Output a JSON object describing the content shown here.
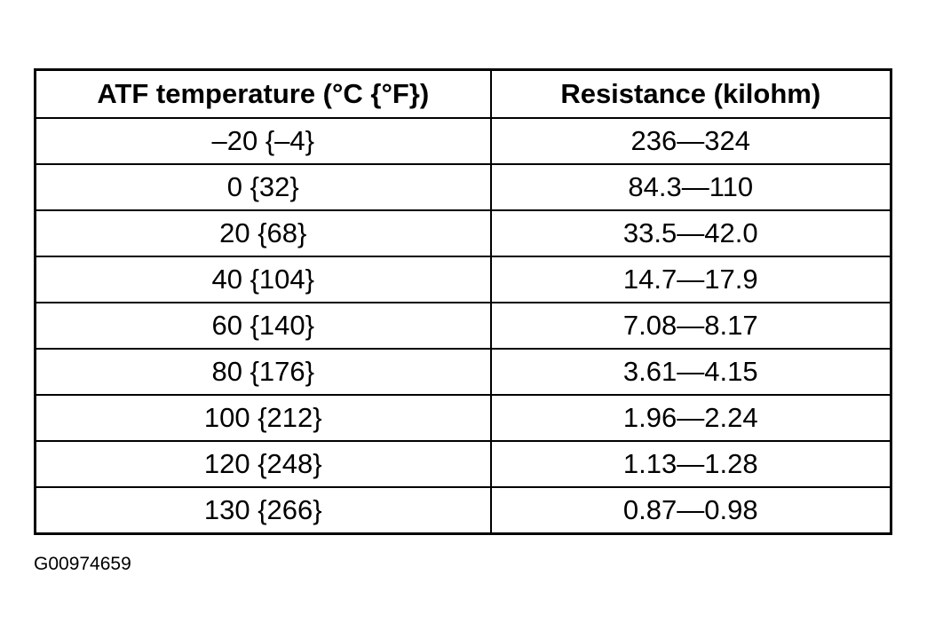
{
  "table": {
    "header": [
      "ATF temperature (°C {°F})",
      "Resistance (kilohm)"
    ],
    "rows": [
      [
        "–20 {–4}",
        "236—324"
      ],
      [
        "0 {32}",
        "84.3—110"
      ],
      [
        "20 {68}",
        "33.5—42.0"
      ],
      [
        "40 {104}",
        "14.7—17.9"
      ],
      [
        "60 {140}",
        "7.08—8.17"
      ],
      [
        "80 {176}",
        "3.61—4.15"
      ],
      [
        "100 {212}",
        "1.96—2.24"
      ],
      [
        "120 {248}",
        "1.13—1.28"
      ],
      [
        "130 {266}",
        "0.87—0.98"
      ]
    ]
  },
  "caption": "G00974659"
}
